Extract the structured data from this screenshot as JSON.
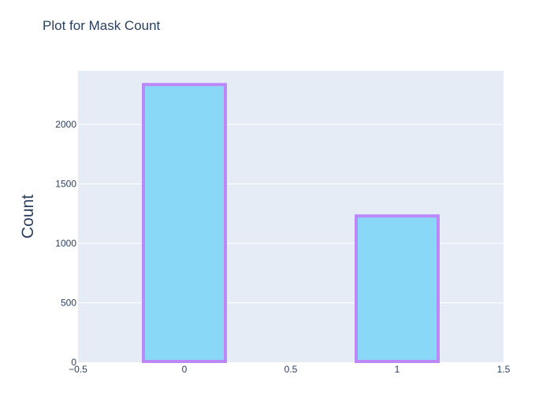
{
  "chart_data": {
    "type": "bar",
    "title": "Plot for Mask Count",
    "xlabel": "",
    "ylabel": "Count",
    "x": [
      0,
      1
    ],
    "values": [
      2335,
      1230
    ],
    "bar_width": 0.4,
    "xlim": [
      -0.5,
      1.5
    ],
    "ylim": [
      0,
      2450
    ],
    "xticks": [
      -0.5,
      0,
      0.5,
      1,
      1.5
    ],
    "xtick_labels": [
      "−0.5",
      "0",
      "0.5",
      "1",
      "1.5"
    ],
    "yticks": [
      0,
      500,
      1000,
      1500,
      2000
    ],
    "ytick_labels": [
      "0",
      "500",
      "1000",
      "1500",
      "2000"
    ],
    "grid": true,
    "legend": "none",
    "colors": {
      "plot_bg": "#e5ecf6",
      "bar_fill": "#87ceeb",
      "bar_fill_opacity": 0.9,
      "bar_fill_display": "#8ad8f7",
      "bar_outline": "#bb88f8",
      "text": "#2a3f5f",
      "grid": "#ffffff"
    }
  }
}
